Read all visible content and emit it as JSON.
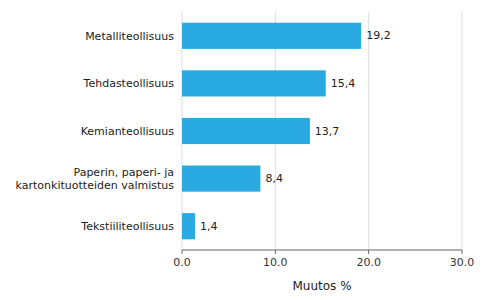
{
  "chart_data": {
    "type": "bar",
    "orientation": "horizontal",
    "categories": [
      "Tekstiiliteollisuus",
      "Paperin, paperi- ja kartonkituotteiden valmistus",
      "Kemianteollisuus",
      "Tehdasteollisuus",
      "Metalliteollisuus"
    ],
    "values": [
      1.4,
      8.4,
      13.7,
      15.4,
      19.2
    ],
    "value_labels": [
      "1,4",
      "8,4",
      "13,7",
      "15,4",
      "19,2"
    ],
    "data_labels": true,
    "color": "#29ABE2",
    "xlabel": "Muutos %",
    "xlim": [
      0,
      30
    ],
    "xticks": [
      {
        "value": 0,
        "label": "0.0"
      },
      {
        "value": 10,
        "label": "10.0"
      },
      {
        "value": 20,
        "label": "20.0"
      },
      {
        "value": 30,
        "label": "30.0"
      }
    ],
    "grid": true
  }
}
